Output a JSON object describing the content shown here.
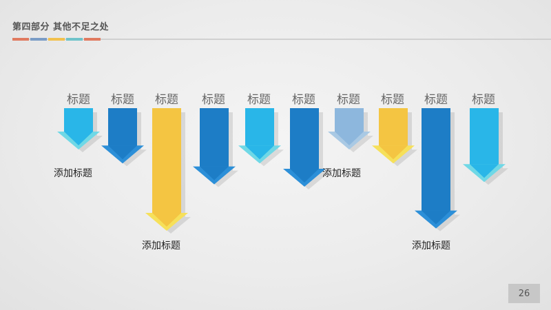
{
  "header": {
    "title": "第四部分  其他不足之处",
    "strip_colors": [
      "#e07a5f",
      "#7a9cc6",
      "#f2c14e",
      "#6fc3c9",
      "#e07a5f"
    ]
  },
  "columns": [
    {
      "label": "标题",
      "level": 0.3,
      "color": "#29b6e8",
      "tip": "#6fd8e6"
    },
    {
      "label": "标题",
      "level": 0.42,
      "color": "#1d7dc6",
      "tip": "#2c8fd8"
    },
    {
      "label": "标题",
      "level": 1.0,
      "color": "#f4c542",
      "tip": "#f6e05a"
    },
    {
      "label": "标题",
      "level": 0.6,
      "color": "#1d7dc6",
      "tip": "#2c8fd8"
    },
    {
      "label": "标题",
      "level": 0.42,
      "color": "#29b6e8",
      "tip": "#6fd8e6"
    },
    {
      "label": "标题",
      "level": 0.62,
      "color": "#1d7dc6",
      "tip": "#2c8fd8"
    },
    {
      "label": "标题",
      "level": 0.3,
      "color": "#8db7dd",
      "tip": "#a9c9e4"
    },
    {
      "label": "标题",
      "level": 0.42,
      "color": "#f4c542",
      "tip": "#f6e05a"
    },
    {
      "label": "标题",
      "level": 0.98,
      "color": "#1d7dc6",
      "tip": "#2c8fd8"
    },
    {
      "label": "标题",
      "level": 0.58,
      "color": "#29b6e8",
      "tip": "#6fd8e6"
    }
  ],
  "captions": [
    "添加标题",
    "添加标题",
    "添加标题",
    "添加标题"
  ],
  "page_number": "26"
}
